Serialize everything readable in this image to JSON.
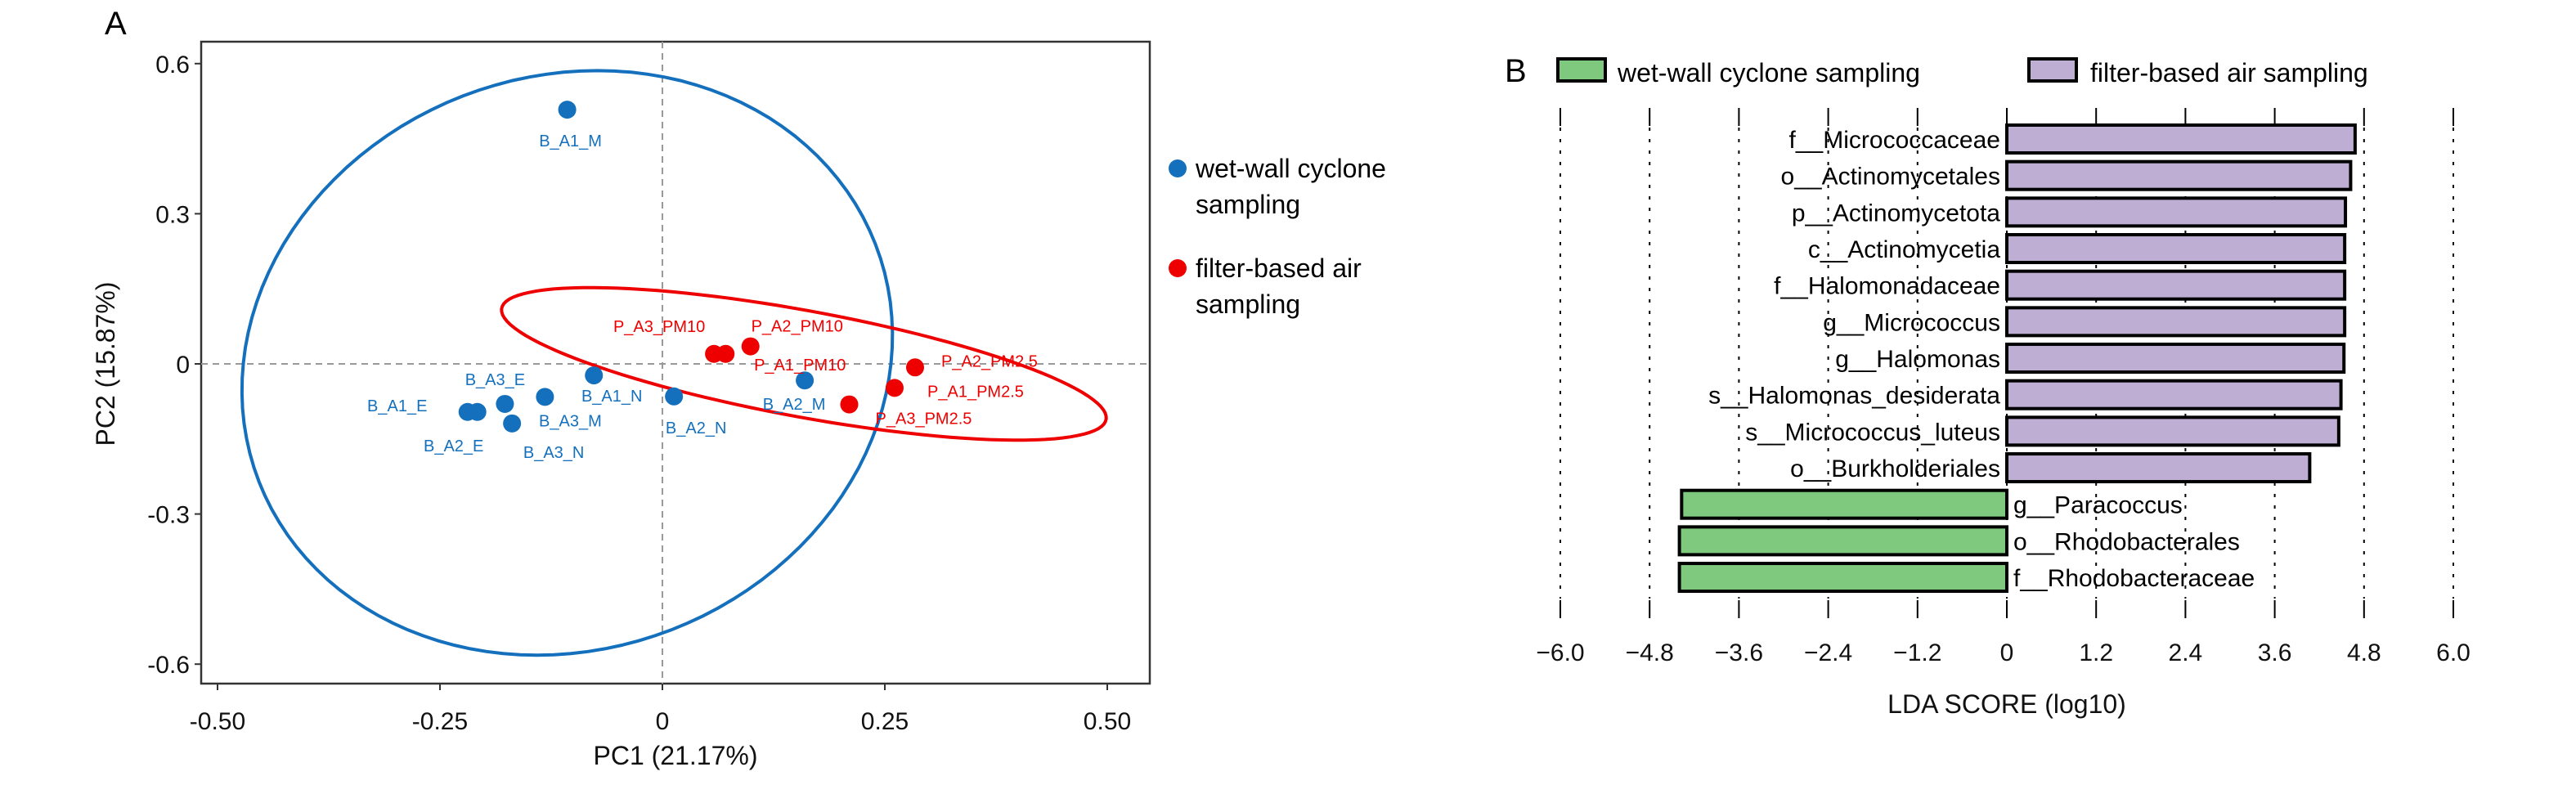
{
  "colors": {
    "wet": "#1470bd",
    "filter": "#ee0000",
    "green": "#7fc97f",
    "purple": "#beaed4"
  },
  "chart_data": [
    {
      "type": "scatter",
      "panel_label": "A",
      "xlabel": "PC1 (21.17%)",
      "ylabel": "PC2 (15.87%)",
      "xlim": [
        -0.518,
        0.548
      ],
      "ylim": [
        -0.64,
        0.643
      ],
      "xticks": [
        -0.5,
        -0.25,
        0,
        0.25,
        0.5
      ],
      "xtick_labels": [
        "-0.50",
        "-0.25",
        "0",
        "0.25",
        "0.50"
      ],
      "yticks": [
        -0.6,
        -0.3,
        0,
        0.3,
        0.6
      ],
      "ytick_labels": [
        "-0.6",
        "-0.3",
        "0",
        "0.3",
        "0.6"
      ],
      "reference_lines": {
        "x": 0,
        "y": 0,
        "style": "dashed"
      },
      "legend_position": "right",
      "series": [
        {
          "name": "wet-wall cyclone sampling",
          "legend_lines": [
            "wet-wall cyclone",
            "sampling"
          ],
          "color": "#1470bd",
          "ellipse": {
            "center": [
              -0.107,
              0.002
            ],
            "axis_u": [
              0.034,
              0.584
            ],
            "axis_v": [
              0.364,
              0.0
            ]
          },
          "points": [
            {
              "label": "B_A1_M",
              "x": -0.107,
              "y": 0.508
            },
            {
              "label": "B_A1_N",
              "x": -0.077,
              "y": -0.023
            },
            {
              "label": "B_A2_N",
              "x": 0.013,
              "y": -0.065
            },
            {
              "label": "B_A2_M",
              "x": 0.16,
              "y": -0.033
            },
            {
              "label": "B_A3_M",
              "x": -0.132,
              "y": -0.066
            },
            {
              "label": "B_A3_E",
              "x": -0.177,
              "y": -0.08
            },
            {
              "label": "B_A1_E",
              "x": -0.219,
              "y": -0.096
            },
            {
              "label": "B_A2_E",
              "x": -0.208,
              "y": -0.096
            },
            {
              "label": "B_A3_N",
              "x": -0.169,
              "y": -0.119
            }
          ]
        },
        {
          "name": "filter-based air sampling",
          "legend_lines": [
            "filter-based air",
            "sampling"
          ],
          "color": "#ee0000",
          "ellipse": {
            "center": [
              0.159,
              0.0
            ],
            "axis_u": [
              0.339,
              -0.115
            ],
            "axis_v": [
              0.024,
              0.1
            ]
          },
          "points": [
            {
              "label": "P_A3_PM10",
              "x": 0.058,
              "y": 0.02
            },
            {
              "label": "P_A2_PM10",
              "x": 0.099,
              "y": 0.035
            },
            {
              "label": "P_A1_PM10",
              "x": 0.071,
              "y": 0.02
            },
            {
              "label": "P_A2_PM2.5",
              "x": 0.284,
              "y": -0.007
            },
            {
              "label": "P_A1_PM2.5",
              "x": 0.261,
              "y": -0.048
            },
            {
              "label": "P_A3_PM2.5",
              "x": 0.21,
              "y": -0.081
            }
          ]
        }
      ]
    },
    {
      "type": "bar",
      "orientation": "horizontal",
      "panel_label": "B",
      "xlabel": "LDA SCORE (log10)",
      "xlim": [
        -6.0,
        6.0
      ],
      "xticks": [
        -6.0,
        -4.8,
        -3.6,
        -2.4,
        -1.2,
        0,
        1.2,
        2.4,
        3.6,
        4.8,
        6.0
      ],
      "xtick_labels": [
        "−6.0",
        "−4.8",
        "−3.6",
        "−2.4",
        "−1.2",
        "0",
        "1.2",
        "2.4",
        "3.6",
        "4.8",
        "6.0"
      ],
      "grid": "vertical dotted",
      "legend_position": "top",
      "legend": [
        {
          "name": "wet-wall cyclone sampling",
          "color": "#7fc97f"
        },
        {
          "name": "filter-based air sampling",
          "color": "#beaed4"
        }
      ],
      "categories": [
        "f__Micrococcaceae",
        "o__Actinomycetales",
        "p__Actinomycetota",
        "c__Actinomycetia",
        "f__Halomonadaceae",
        "g__Micrococcus",
        "g__Halomonas",
        "s__Halomonas_desiderata",
        "s__Micrococcus_luteus",
        "o__Burkholderiales",
        "g__Paracoccus",
        "o__Rhodobacterales",
        "f__Rhodobacteraceae"
      ],
      "values": [
        4.68,
        4.62,
        4.55,
        4.54,
        4.54,
        4.54,
        4.53,
        4.49,
        4.46,
        4.07,
        -4.37,
        -4.4,
        -4.4
      ],
      "groups": [
        "filter-based air sampling",
        "filter-based air sampling",
        "filter-based air sampling",
        "filter-based air sampling",
        "filter-based air sampling",
        "filter-based air sampling",
        "filter-based air sampling",
        "filter-based air sampling",
        "filter-based air sampling",
        "filter-based air sampling",
        "wet-wall cyclone sampling",
        "wet-wall cyclone sampling",
        "wet-wall cyclone sampling"
      ]
    }
  ]
}
